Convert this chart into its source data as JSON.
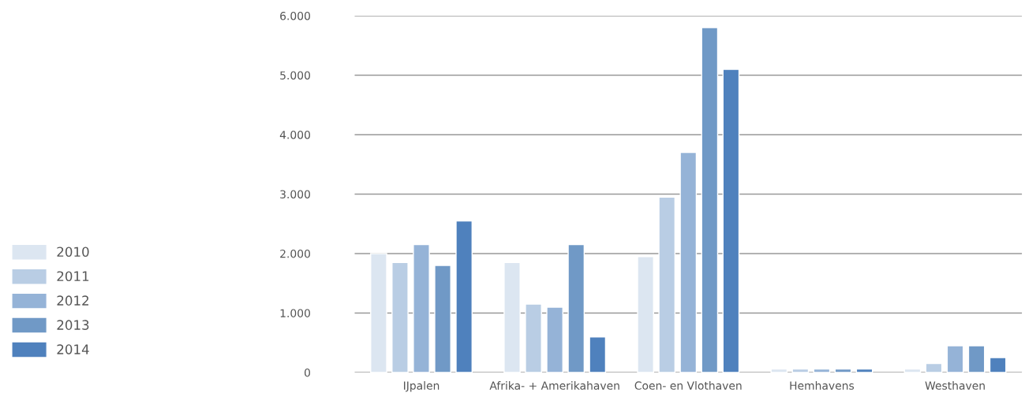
{
  "chart_data": {
    "type": "bar",
    "categories": [
      "IJpalen",
      "Afrika- + Amerikahaven",
      "Coen- en Vlothaven",
      "Hemhavens",
      "Westhaven"
    ],
    "series": [
      {
        "name": "2010",
        "color": "#dce6f1",
        "values": [
          2000,
          1850,
          1950,
          60,
          60
        ]
      },
      {
        "name": "2011",
        "color": "#b9cde4",
        "values": [
          1850,
          1150,
          2950,
          60,
          150
        ]
      },
      {
        "name": "2012",
        "color": "#95b3d7",
        "values": [
          2150,
          1100,
          3700,
          60,
          450
        ]
      },
      {
        "name": "2013",
        "color": "#7099c6",
        "values": [
          1800,
          2150,
          5800,
          60,
          450
        ]
      },
      {
        "name": "2014",
        "color": "#4f81bd",
        "values": [
          2550,
          600,
          5100,
          60,
          250
        ]
      }
    ],
    "ylim": [
      0,
      6000
    ],
    "yticks": [
      {
        "value": 0,
        "label": "0"
      },
      {
        "value": 1000,
        "label": "1.000"
      },
      {
        "value": 2000,
        "label": "2.000"
      },
      {
        "value": 3000,
        "label": "3.000"
      },
      {
        "value": 4000,
        "label": "4.000"
      },
      {
        "value": 5000,
        "label": "5.000"
      },
      {
        "value": 6000,
        "label": "6.000"
      }
    ],
    "grid": "y",
    "legend": "left"
  }
}
